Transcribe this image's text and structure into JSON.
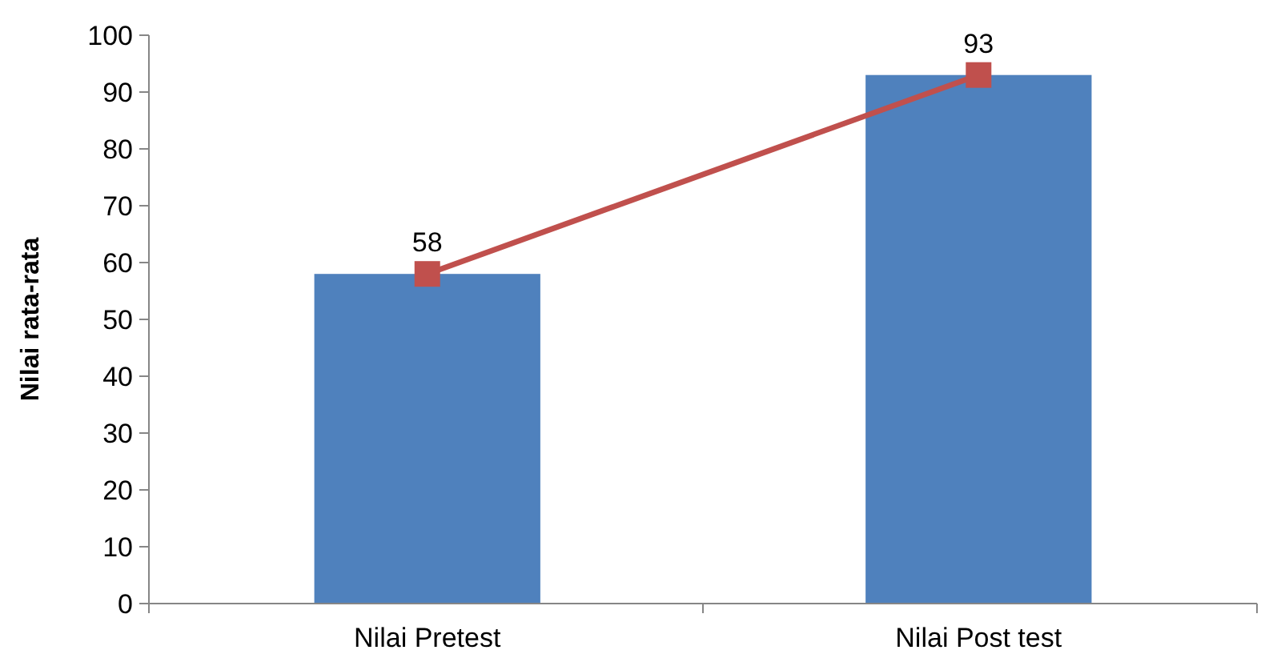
{
  "chart_data": {
    "type": "bar",
    "ylabel": "Nilai rata-rata",
    "categories": [
      "Nilai Pretest",
      "Nilai Post test"
    ],
    "series": [
      {
        "color": "#4f81bd",
        "values": [
          58,
          93
        ]
      },
      {
        "type": "line",
        "color": "#c0504d",
        "values": [
          58,
          93
        ],
        "marker": "square",
        "value_labels": [
          "58",
          "93"
        ]
      }
    ],
    "ylim": [
      0,
      100
    ],
    "yticks": [
      0,
      10,
      20,
      30,
      40,
      50,
      60,
      70,
      80,
      90,
      100
    ],
    "grid": false
  }
}
